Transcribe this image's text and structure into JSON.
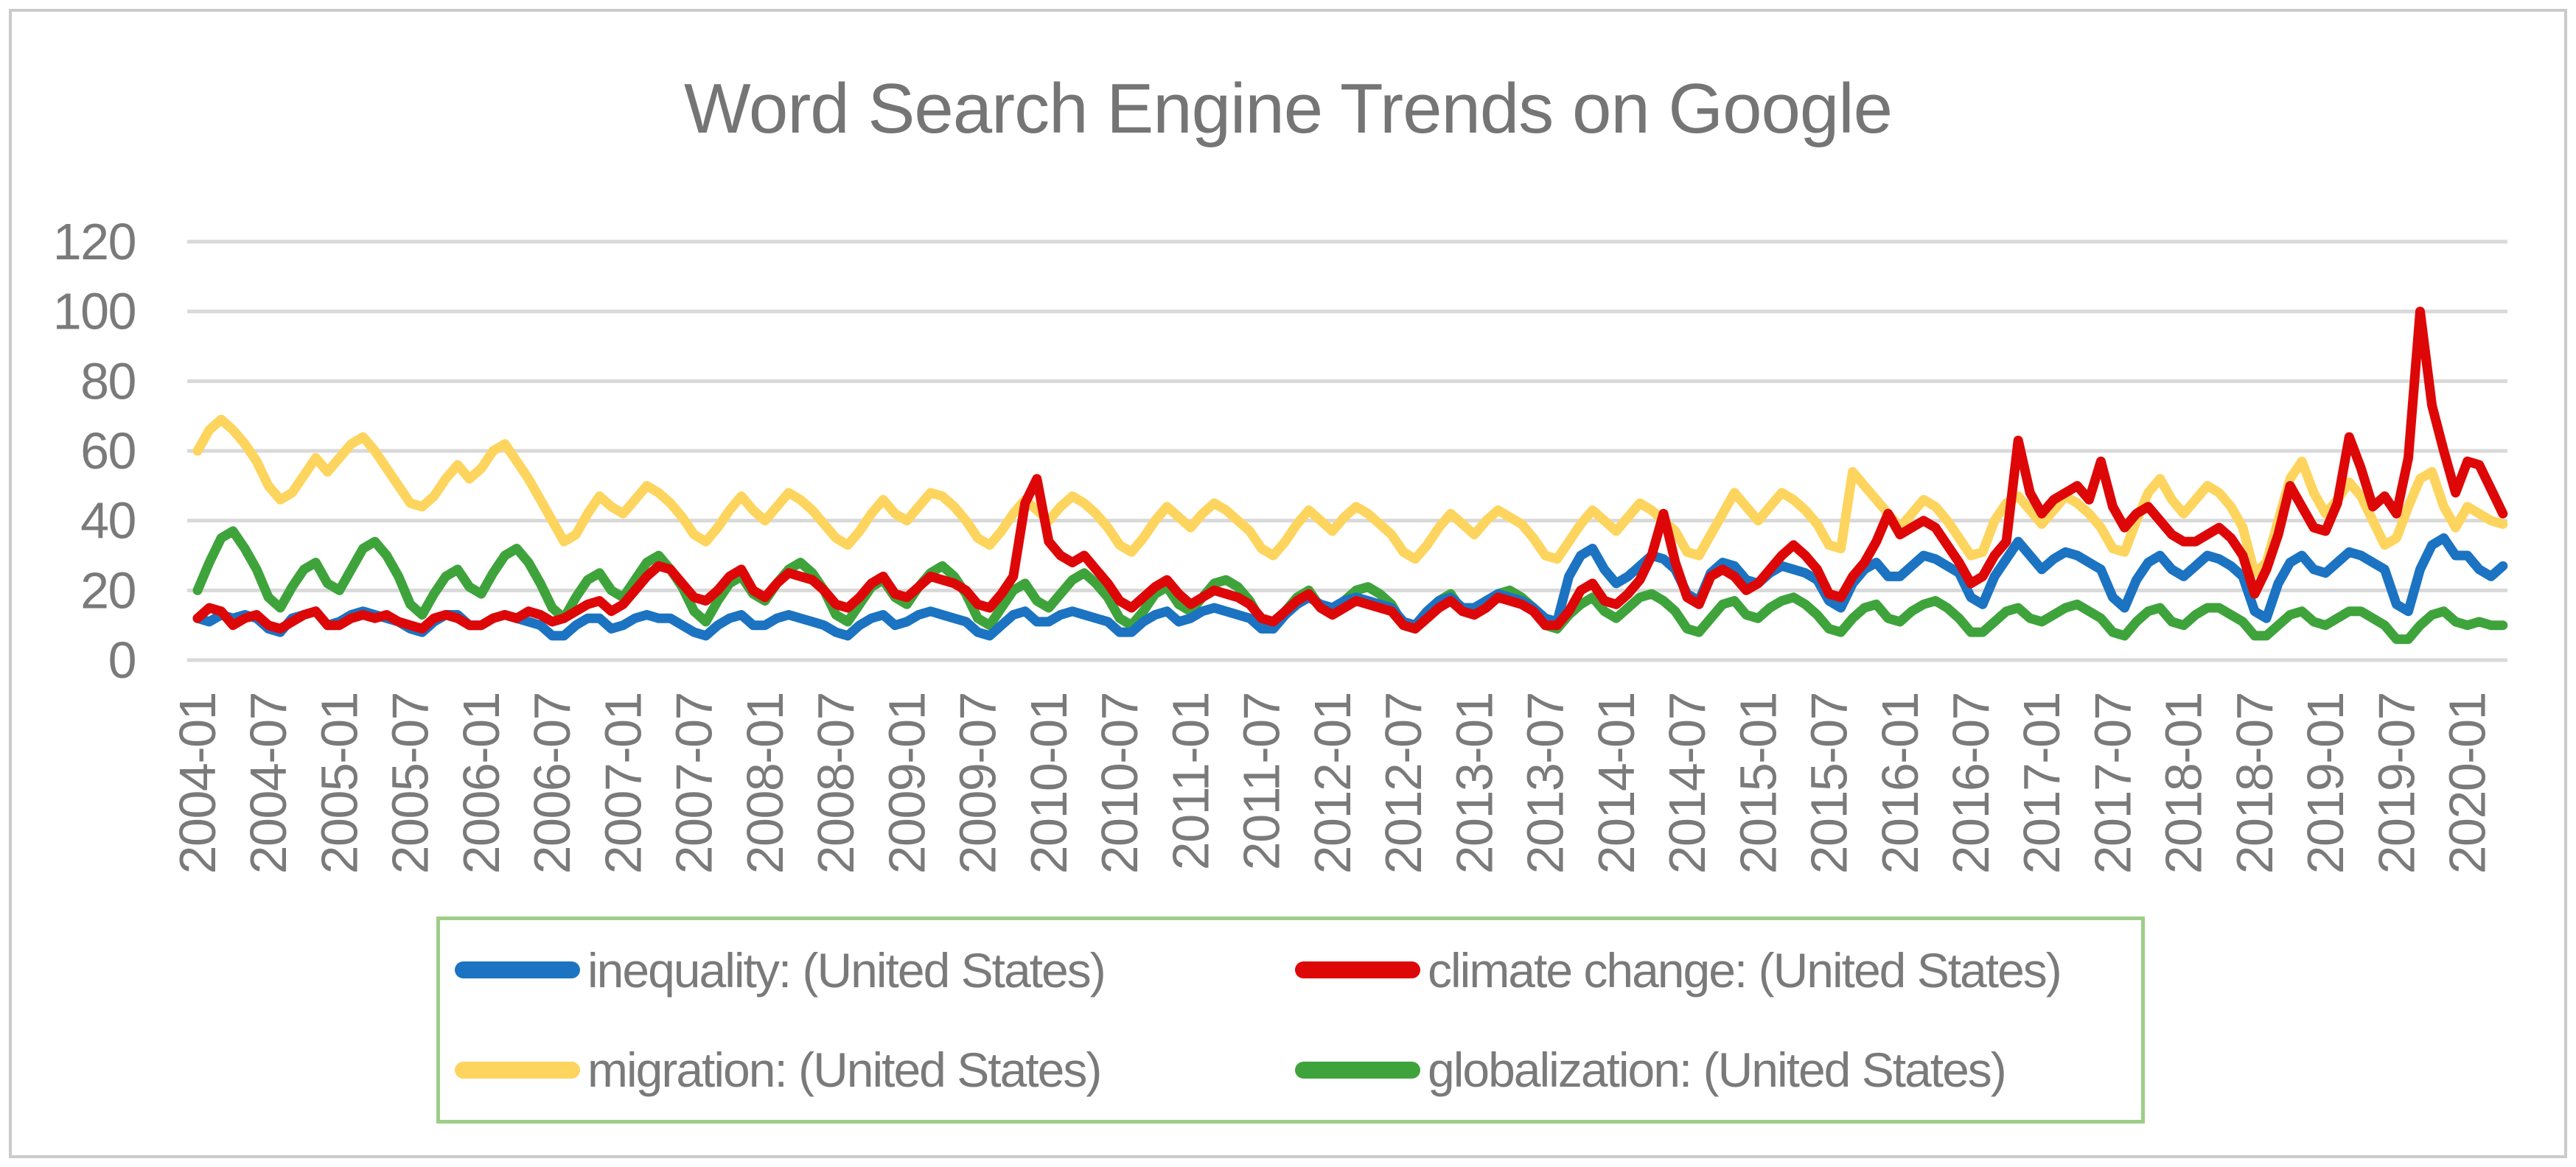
{
  "chart_data": {
    "type": "line",
    "title": "Word Search Engine Trends on Google",
    "xlabel": "",
    "ylabel": "",
    "x_start": "2004-01",
    "x_frequency": "monthly",
    "n_points": 196,
    "x_tick_every_months": 6,
    "x_tick_labels": [
      "2004-01",
      "2004-07",
      "2005-01",
      "2005-07",
      "2006-01",
      "2006-07",
      "2007-01",
      "2007-07",
      "2008-01",
      "2008-07",
      "2009-01",
      "2009-07",
      "2010-01",
      "2010-07",
      "2011-01",
      "2011-07",
      "2012-01",
      "2012-07",
      "2013-01",
      "2013-07",
      "2014-01",
      "2014-07",
      "2015-01",
      "2015-07",
      "2016-01",
      "2016-07",
      "2017-01",
      "2017-07",
      "2018-01",
      "2018-07",
      "2019-01",
      "2019-07",
      "2020-01"
    ],
    "ylim": [
      0,
      120
    ],
    "yticks": [
      0,
      20,
      40,
      60,
      80,
      100,
      120
    ],
    "grid": "horizontal",
    "gridline_color": "#d9d9d9",
    "axis_text_color": "#7a7a7a",
    "title_color": "#757575",
    "legend_position": "bottom",
    "legend_border_color": "#9dce87",
    "draw_order": [
      "migration",
      "globalization",
      "inequality",
      "climate_change"
    ],
    "series": [
      {
        "id": "inequality",
        "label": "inequality: (United States)",
        "color": "#1b73c2",
        "values": [
          12,
          11,
          13,
          12,
          13,
          12,
          9,
          8,
          12,
          13,
          14,
          10,
          11,
          13,
          14,
          13,
          12,
          11,
          9,
          8,
          11,
          13,
          13,
          10,
          10,
          12,
          13,
          12,
          11,
          10,
          7,
          7,
          10,
          12,
          12,
          9,
          10,
          12,
          13,
          12,
          12,
          10,
          8,
          7,
          10,
          12,
          13,
          10,
          10,
          12,
          13,
          12,
          11,
          10,
          8,
          7,
          10,
          12,
          13,
          10,
          11,
          13,
          14,
          13,
          12,
          11,
          8,
          7,
          10,
          13,
          14,
          11,
          11,
          13,
          14,
          13,
          12,
          11,
          8,
          8,
          11,
          13,
          14,
          11,
          12,
          14,
          15,
          14,
          13,
          12,
          9,
          9,
          13,
          16,
          18,
          16,
          15,
          17,
          18,
          17,
          16,
          15,
          11,
          10,
          14,
          17,
          18,
          15,
          15,
          17,
          19,
          18,
          17,
          15,
          12,
          11,
          24,
          30,
          32,
          26,
          22,
          24,
          27,
          30,
          29,
          26,
          19,
          17,
          25,
          28,
          27,
          23,
          22,
          25,
          27,
          26,
          25,
          23,
          17,
          15,
          22,
          26,
          28,
          24,
          24,
          27,
          30,
          29,
          27,
          25,
          18,
          16,
          24,
          29,
          34,
          30,
          26,
          29,
          31,
          30,
          28,
          26,
          18,
          15,
          23,
          28,
          30,
          26,
          24,
          27,
          30,
          29,
          27,
          24,
          14,
          12,
          22,
          28,
          30,
          26,
          25,
          28,
          31,
          30,
          28,
          26,
          16,
          14,
          26,
          33,
          35,
          30,
          30,
          26,
          24,
          27
        ]
      },
      {
        "id": "climate_change",
        "label": "climate change: (United States)",
        "color": "#de0707",
        "values": [
          12,
          15,
          14,
          10,
          12,
          13,
          10,
          9,
          11,
          13,
          14,
          10,
          10,
          12,
          13,
          12,
          13,
          11,
          10,
          9,
          12,
          13,
          12,
          10,
          10,
          12,
          13,
          12,
          14,
          13,
          11,
          12,
          14,
          16,
          17,
          14,
          16,
          20,
          24,
          27,
          26,
          22,
          18,
          17,
          20,
          24,
          26,
          20,
          18,
          22,
          25,
          24,
          23,
          20,
          16,
          15,
          18,
          22,
          24,
          19,
          18,
          21,
          24,
          23,
          22,
          20,
          16,
          15,
          19,
          24,
          45,
          52,
          34,
          30,
          28,
          30,
          26,
          22,
          17,
          15,
          18,
          21,
          23,
          19,
          16,
          18,
          20,
          19,
          18,
          16,
          12,
          11,
          14,
          17,
          19,
          15,
          13,
          15,
          17,
          16,
          15,
          14,
          10,
          9,
          12,
          15,
          17,
          14,
          13,
          15,
          18,
          17,
          16,
          14,
          10,
          10,
          14,
          20,
          22,
          17,
          16,
          19,
          23,
          30,
          42,
          28,
          18,
          16,
          24,
          26,
          24,
          20,
          22,
          26,
          30,
          33,
          30,
          26,
          19,
          18,
          24,
          28,
          34,
          42,
          36,
          38,
          40,
          38,
          33,
          28,
          22,
          24,
          30,
          34,
          63,
          48,
          42,
          46,
          48,
          50,
          46,
          57,
          44,
          38,
          42,
          44,
          40,
          36,
          34,
          34,
          36,
          38,
          35,
          30,
          19,
          26,
          36,
          50,
          44,
          38,
          37,
          45,
          64,
          55,
          44,
          47,
          42,
          58,
          100,
          73,
          60,
          48,
          57,
          56,
          49,
          42
        ]
      },
      {
        "id": "migration",
        "label": "migration: (United States)",
        "color": "#fdd55e",
        "values": [
          60,
          66,
          69,
          66,
          62,
          57,
          50,
          46,
          48,
          53,
          58,
          54,
          58,
          62,
          64,
          60,
          55,
          50,
          45,
          44,
          47,
          52,
          56,
          52,
          55,
          60,
          62,
          57,
          52,
          46,
          40,
          34,
          36,
          42,
          47,
          44,
          42,
          46,
          50,
          48,
          45,
          41,
          36,
          34,
          38,
          43,
          47,
          43,
          40,
          44,
          48,
          46,
          43,
          39,
          35,
          33,
          37,
          42,
          46,
          42,
          40,
          44,
          48,
          47,
          44,
          40,
          35,
          33,
          37,
          42,
          46,
          43,
          40,
          44,
          47,
          45,
          42,
          38,
          33,
          31,
          35,
          40,
          44,
          41,
          38,
          42,
          45,
          43,
          40,
          37,
          32,
          30,
          34,
          39,
          43,
          40,
          37,
          41,
          44,
          42,
          39,
          36,
          31,
          29,
          33,
          38,
          42,
          39,
          36,
          40,
          43,
          41,
          39,
          35,
          30,
          29,
          34,
          39,
          43,
          40,
          37,
          41,
          45,
          43,
          40,
          37,
          31,
          30,
          36,
          42,
          48,
          44,
          40,
          44,
          48,
          46,
          43,
          39,
          33,
          32,
          54,
          50,
          46,
          42,
          38,
          42,
          46,
          44,
          40,
          35,
          30,
          31,
          40,
          45,
          47,
          43,
          39,
          43,
          47,
          45,
          42,
          38,
          32,
          31,
          40,
          48,
          52,
          46,
          42,
          46,
          50,
          48,
          44,
          38,
          25,
          28,
          40,
          52,
          57,
          48,
          42,
          46,
          51,
          47,
          40,
          33,
          35,
          44,
          52,
          54,
          44,
          38,
          44,
          42,
          40,
          39
        ]
      },
      {
        "id": "globalization",
        "label": "globalization: (United States)",
        "color": "#3fa33c",
        "values": [
          20,
          28,
          35,
          37,
          32,
          26,
          18,
          15,
          21,
          26,
          28,
          22,
          20,
          26,
          32,
          34,
          30,
          24,
          16,
          13,
          19,
          24,
          26,
          21,
          19,
          25,
          30,
          32,
          28,
          22,
          15,
          12,
          18,
          23,
          25,
          20,
          18,
          23,
          28,
          30,
          26,
          21,
          14,
          11,
          17,
          22,
          24,
          19,
          17,
          22,
          26,
          28,
          25,
          20,
          13,
          11,
          16,
          21,
          23,
          18,
          16,
          21,
          25,
          27,
          24,
          19,
          12,
          10,
          15,
          20,
          22,
          17,
          15,
          19,
          23,
          25,
          22,
          18,
          12,
          10,
          14,
          19,
          21,
          16,
          14,
          18,
          22,
          23,
          21,
          17,
          11,
          9,
          14,
          18,
          20,
          15,
          13,
          17,
          20,
          21,
          19,
          16,
          10,
          9,
          13,
          17,
          19,
          14,
          13,
          16,
          19,
          20,
          18,
          15,
          10,
          9,
          13,
          16,
          18,
          14,
          12,
          15,
          18,
          19,
          17,
          14,
          9,
          8,
          12,
          16,
          17,
          13,
          12,
          15,
          17,
          18,
          16,
          13,
          9,
          8,
          12,
          15,
          16,
          12,
          11,
          14,
          16,
          17,
          15,
          12,
          8,
          8,
          11,
          14,
          15,
          12,
          11,
          13,
          15,
          16,
          14,
          12,
          8,
          7,
          11,
          14,
          15,
          11,
          10,
          13,
          15,
          15,
          13,
          11,
          7,
          7,
          10,
          13,
          14,
          11,
          10,
          12,
          14,
          14,
          12,
          10,
          6,
          6,
          10,
          13,
          14,
          11,
          10,
          11,
          10,
          10
        ]
      }
    ]
  }
}
